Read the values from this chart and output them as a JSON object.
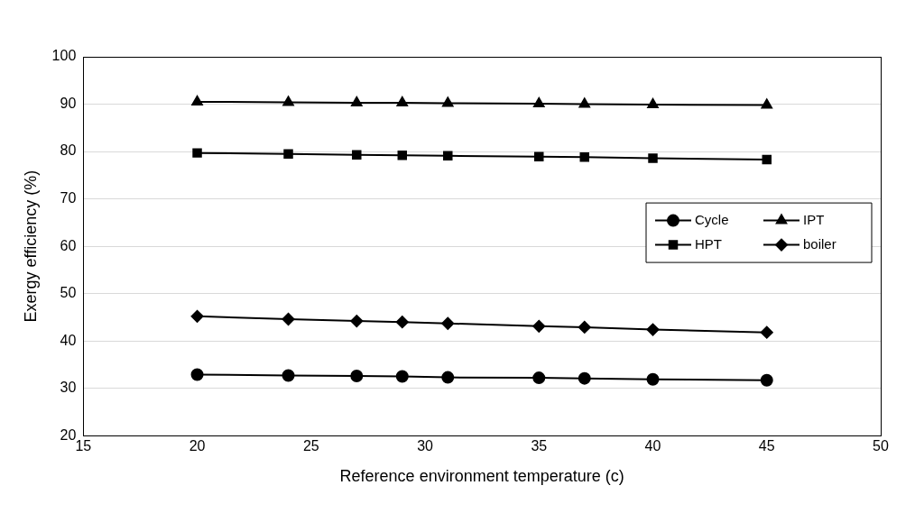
{
  "chart_data": {
    "type": "line",
    "xlabel": "Reference environment temperature (c)",
    "ylabel": "Exergy efficiency (%)",
    "x": [
      20,
      24,
      27,
      29,
      31,
      35,
      37,
      40,
      45
    ],
    "xlim": [
      15,
      50
    ],
    "xticks": [
      15,
      20,
      25,
      30,
      35,
      40,
      45,
      50
    ],
    "ylim": [
      20,
      100
    ],
    "yticks": [
      20,
      30,
      40,
      50,
      60,
      70,
      80,
      90,
      100
    ],
    "grid": "y",
    "legend": "right",
    "line_style": "solid",
    "series": [
      {
        "name": "Cycle",
        "color": "#000000",
        "marker": "circle",
        "values": [
          32.9,
          32.7,
          32.6,
          32.5,
          32.3,
          32.2,
          32.1,
          31.9,
          31.7
        ]
      },
      {
        "name": "IPT",
        "color": "#000000",
        "marker": "triangle",
        "values": [
          90.5,
          90.4,
          90.3,
          90.3,
          90.2,
          90.1,
          90.0,
          89.9,
          89.8
        ]
      },
      {
        "name": "HPT",
        "color": "#000000",
        "marker": "square",
        "values": [
          79.7,
          79.5,
          79.3,
          79.2,
          79.1,
          78.9,
          78.8,
          78.6,
          78.3
        ]
      },
      {
        "name": "boiler",
        "color": "#000000",
        "marker": "diamond",
        "values": [
          45.2,
          44.6,
          44.2,
          44.0,
          43.7,
          43.1,
          42.9,
          42.4,
          41.8
        ]
      }
    ]
  }
}
